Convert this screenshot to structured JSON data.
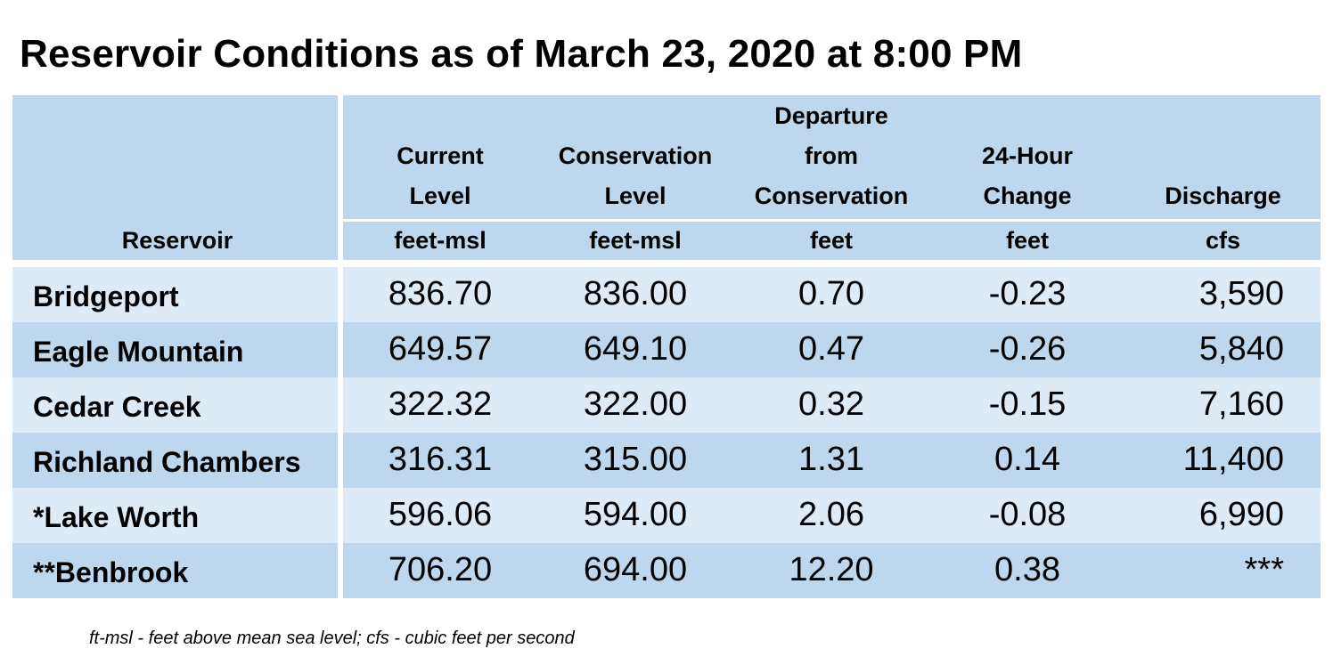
{
  "title": "Reservoir Conditions as of March 23, 2020 at 8:00 PM",
  "columns": [
    {
      "label_lines": [
        "Reservoir"
      ],
      "unit": ""
    },
    {
      "label_lines": [
        "Current",
        "Level"
      ],
      "unit": "feet-msl"
    },
    {
      "label_lines": [
        "Conservation",
        "Level"
      ],
      "unit": "feet-msl"
    },
    {
      "label_lines": [
        "Departure",
        "from",
        "Conservation"
      ],
      "unit": "feet"
    },
    {
      "label_lines": [
        "24-Hour",
        "Change"
      ],
      "unit": "feet"
    },
    {
      "label_lines": [
        "Discharge"
      ],
      "unit": "cfs"
    }
  ],
  "rows": [
    {
      "name": "Bridgeport",
      "current": "836.70",
      "conservation": "836.00",
      "departure": "0.70",
      "change": "-0.23",
      "discharge": "3,590"
    },
    {
      "name": "Eagle Mountain",
      "current": "649.57",
      "conservation": "649.10",
      "departure": "0.47",
      "change": "-0.26",
      "discharge": "5,840"
    },
    {
      "name": "Cedar Creek",
      "current": "322.32",
      "conservation": "322.00",
      "departure": "0.32",
      "change": "-0.15",
      "discharge": "7,160"
    },
    {
      "name": "Richland Chambers",
      "current": "316.31",
      "conservation": "315.00",
      "departure": "1.31",
      "change": "0.14",
      "discharge": "11,400"
    },
    {
      "name": "*Lake Worth",
      "current": "596.06",
      "conservation": "594.00",
      "departure": "2.06",
      "change": "-0.08",
      "discharge": "6,990"
    },
    {
      "name": "**Benbrook",
      "current": "706.20",
      "conservation": "694.00",
      "departure": "12.20",
      "change": "0.38",
      "discharge": "***"
    }
  ],
  "footnote": "ft-msl - feet above mean sea level; cfs - cubic feet per second",
  "colors": {
    "header_bg": "#bdd7ee",
    "row_light": "#ddebf7",
    "row_dark": "#bdd7ee"
  }
}
